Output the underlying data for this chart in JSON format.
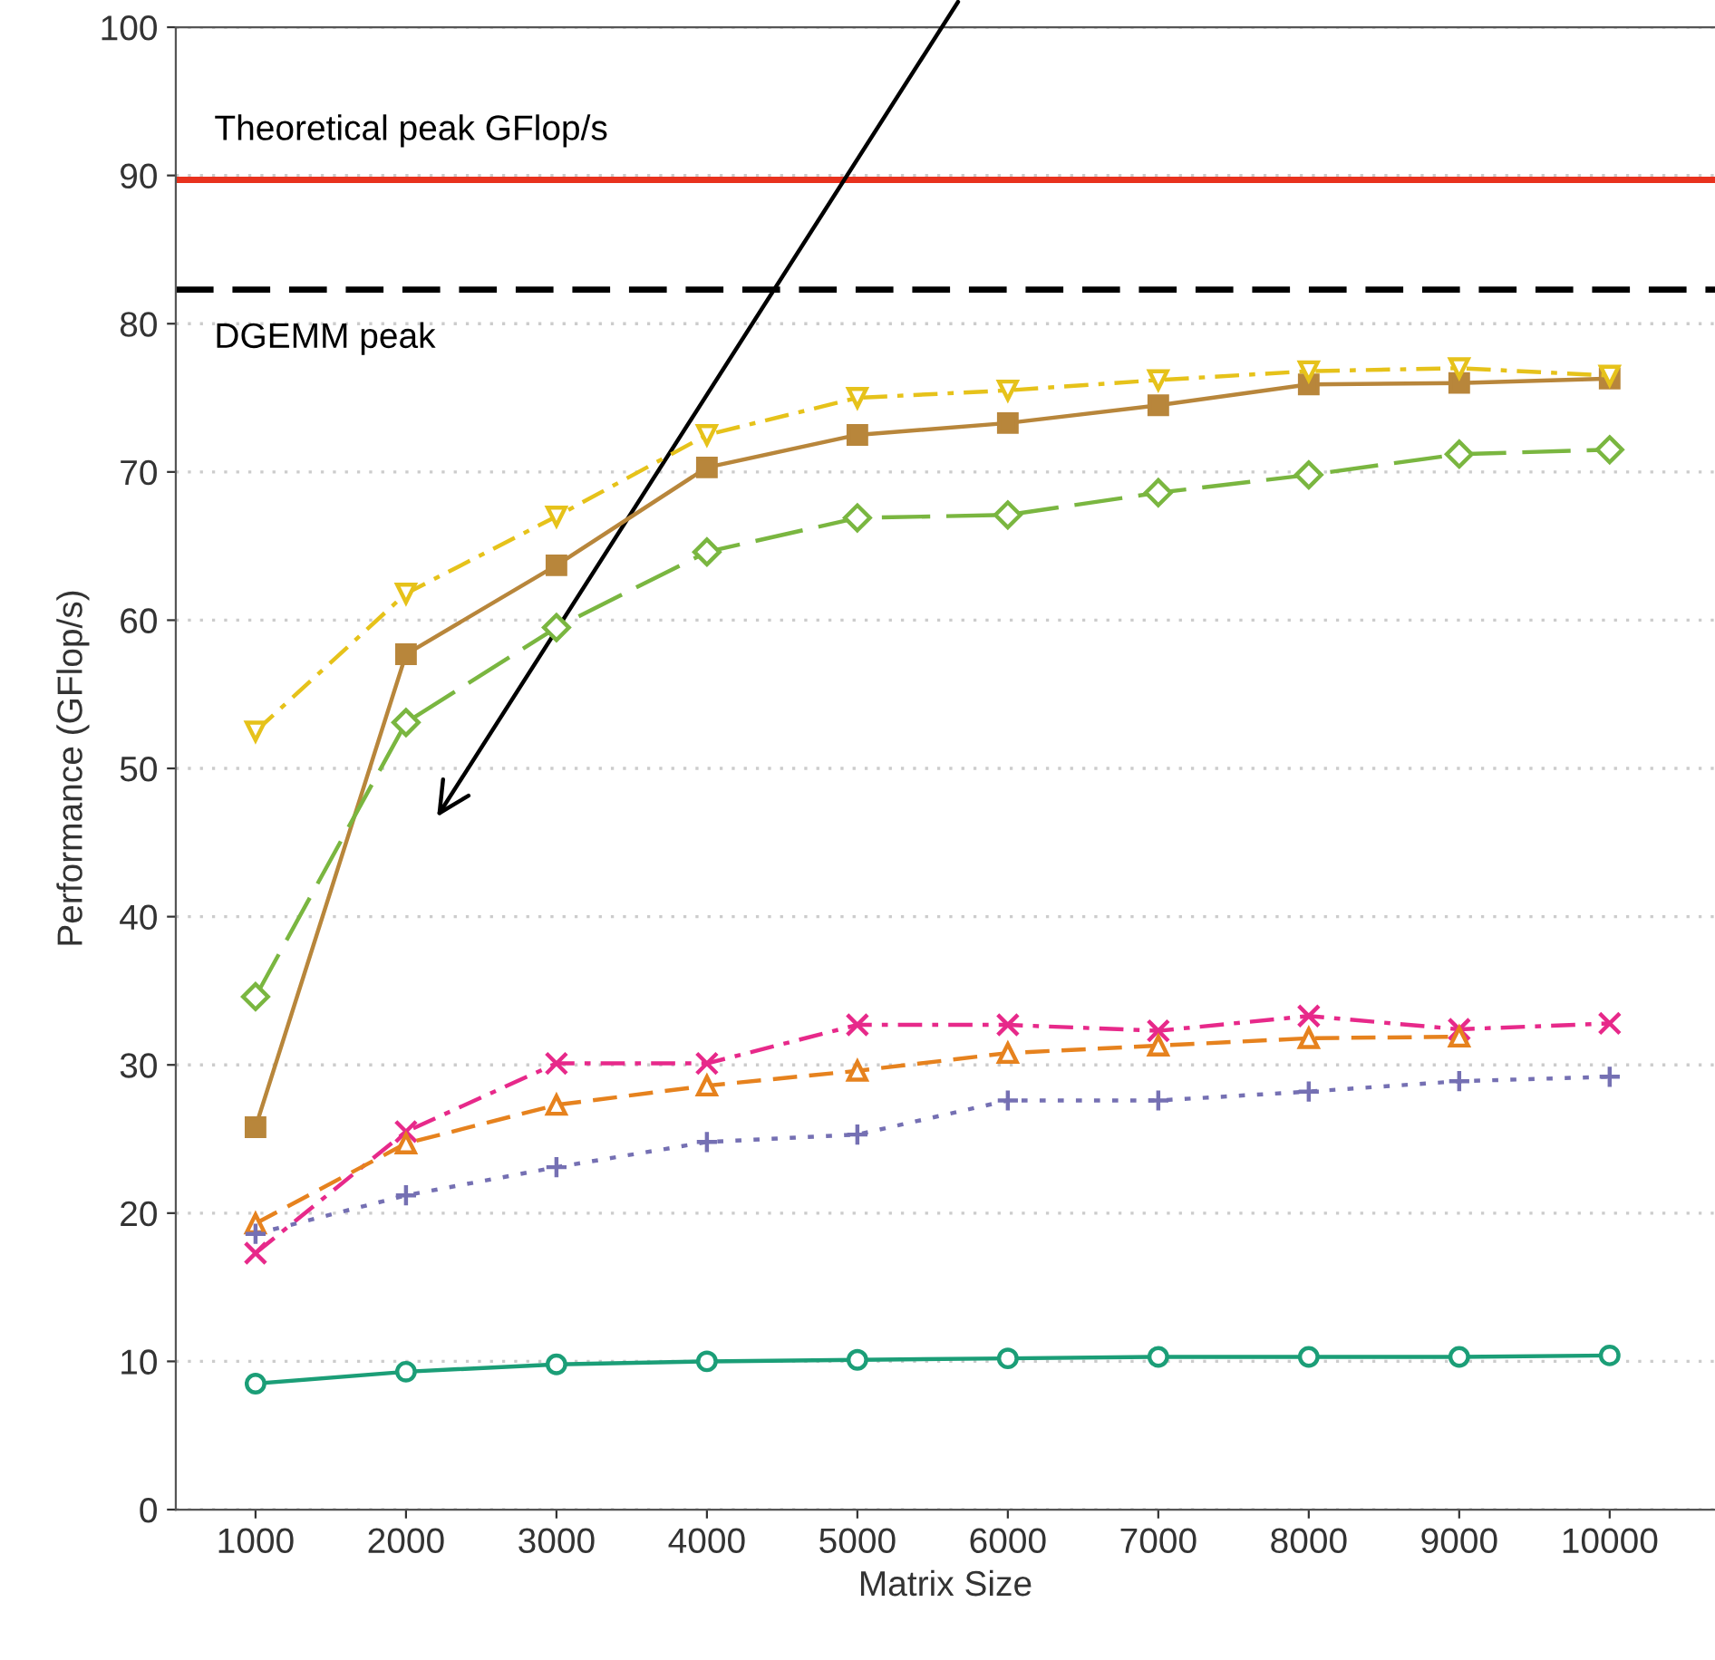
{
  "chart_data": {
    "type": "line",
    "xlabel": "Matrix Size",
    "ylabel": "Performance (GFlop/s)",
    "x": [
      1000,
      2000,
      3000,
      4000,
      5000,
      6000,
      7000,
      8000,
      9000,
      10000
    ],
    "xlim": [
      470,
      10700
    ],
    "xticks": [
      1000,
      2000,
      3000,
      4000,
      5000,
      6000,
      7000,
      8000,
      9000,
      10000
    ],
    "ylim": [
      0,
      100
    ],
    "yticks": [
      0,
      10,
      20,
      30,
      40,
      50,
      60,
      70,
      80,
      90,
      100
    ],
    "grid": "y",
    "legend": false,
    "ref_lines": [
      {
        "axis": "y",
        "value": 89.7,
        "label": "Theoretical peak GFlop/s",
        "color": "#e8321e",
        "line_style": "solid"
      },
      {
        "axis": "y",
        "value": 82.3,
        "label": "DGEMM peak",
        "color": "#000000",
        "line_style": "dashed"
      }
    ],
    "series": [
      {
        "color": "#e6c21a",
        "marker": "triangle_down",
        "line_style": "dashdot",
        "values": [
          52.5,
          61.8,
          67.0,
          72.5,
          75.0,
          75.5,
          76.2,
          76.8,
          77.0,
          76.5
        ]
      },
      {
        "color": "#b8863b",
        "marker": "square",
        "line_style": "solid",
        "values": [
          25.8,
          57.7,
          63.7,
          70.3,
          72.5,
          73.3,
          74.5,
          75.9,
          76.0,
          76.3
        ]
      },
      {
        "color": "#7ab640",
        "marker": "diamond",
        "line_style": "longdash",
        "values": [
          34.6,
          53.1,
          59.5,
          64.6,
          66.9,
          67.1,
          68.6,
          69.8,
          71.2,
          71.5
        ]
      },
      {
        "color": "#e7298a",
        "marker": "cross",
        "line_style": "dashdot",
        "values": [
          17.3,
          25.5,
          30.1,
          30.1,
          32.7,
          32.7,
          32.3,
          33.3,
          32.4,
          32.8
        ]
      },
      {
        "color": "#e6821e",
        "marker": "triangle",
        "line_style": "dashed",
        "values": [
          19.3,
          24.7,
          27.3,
          28.6,
          29.6,
          30.8,
          31.3,
          31.8,
          31.9,
          null
        ]
      },
      {
        "color": "#7570b3",
        "marker": "plus",
        "line_style": "dotted",
        "values": [
          18.6,
          21.2,
          23.1,
          24.8,
          25.3,
          27.6,
          27.6,
          28.2,
          28.9,
          29.2
        ]
      },
      {
        "color": "#1b9e77",
        "marker": "circle",
        "line_style": "solid",
        "values": [
          8.5,
          9.3,
          9.8,
          10.0,
          10.1,
          10.2,
          10.3,
          10.3,
          10.3,
          10.4
        ]
      }
    ]
  }
}
